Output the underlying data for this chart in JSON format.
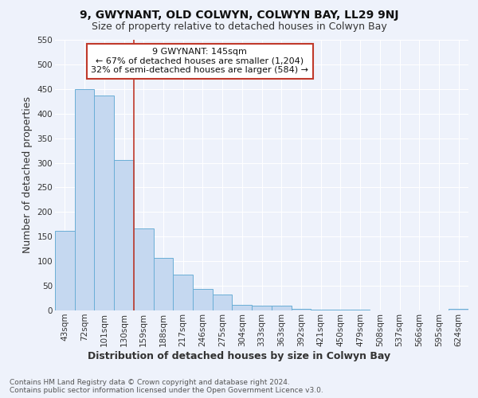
{
  "title": "9, GWYNANT, OLD COLWYN, COLWYN BAY, LL29 9NJ",
  "subtitle": "Size of property relative to detached houses in Colwyn Bay",
  "xlabel": "Distribution of detached houses by size in Colwyn Bay",
  "ylabel": "Number of detached properties",
  "categories": [
    "43sqm",
    "72sqm",
    "101sqm",
    "130sqm",
    "159sqm",
    "188sqm",
    "217sqm",
    "246sqm",
    "275sqm",
    "304sqm",
    "333sqm",
    "363sqm",
    "392sqm",
    "421sqm",
    "450sqm",
    "479sqm",
    "508sqm",
    "537sqm",
    "566sqm",
    "595sqm",
    "624sqm"
  ],
  "values": [
    162,
    450,
    437,
    305,
    166,
    106,
    72,
    44,
    33,
    12,
    10,
    9,
    3,
    1,
    1,
    1,
    0,
    0,
    0,
    0,
    4
  ],
  "bar_color": "#c5d8f0",
  "bar_edge_color": "#6aaed6",
  "vline_x": 3.5,
  "vline_color": "#c0392b",
  "annotation_text": "9 GWYNANT: 145sqm\n← 67% of detached houses are smaller (1,204)\n32% of semi-detached houses are larger (584) →",
  "annotation_box_color": "#ffffff",
  "annotation_box_edge": "#c0392b",
  "ylim": [
    0,
    550
  ],
  "yticks": [
    0,
    50,
    100,
    150,
    200,
    250,
    300,
    350,
    400,
    450,
    500,
    550
  ],
  "footer": "Contains HM Land Registry data © Crown copyright and database right 2024.\nContains public sector information licensed under the Open Government Licence v3.0.",
  "background_color": "#eef2fb",
  "grid_color": "#ffffff",
  "title_fontsize": 10,
  "subtitle_fontsize": 9,
  "axis_label_fontsize": 9,
  "tick_fontsize": 7.5,
  "annotation_fontsize": 8,
  "footer_fontsize": 6.5
}
